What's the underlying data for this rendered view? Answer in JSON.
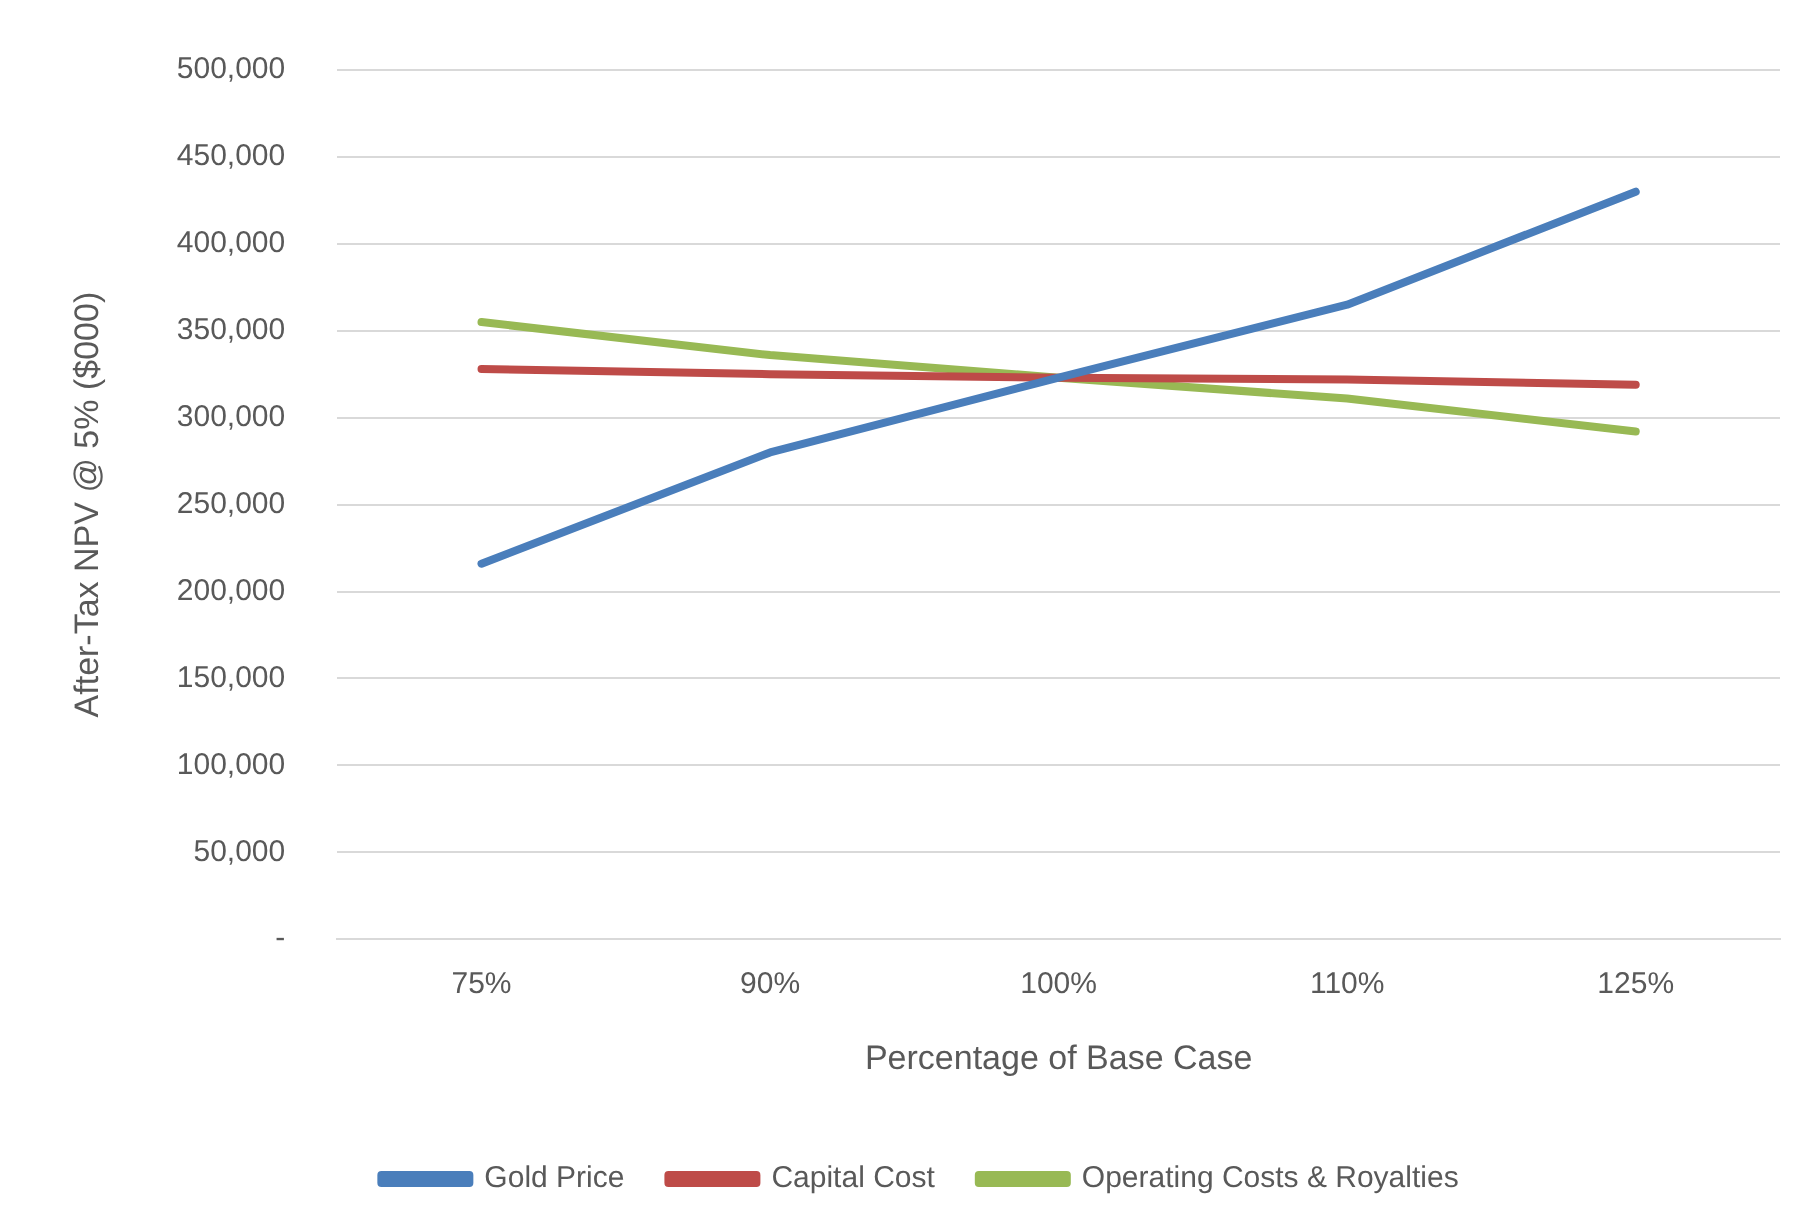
{
  "chart_data": {
    "type": "line",
    "xlabel": "Percentage of Base Case",
    "ylabel": "After-Tax NPV @ 5% ($000)",
    "categories": [
      "75%",
      "90%",
      "100%",
      "110%",
      "125%"
    ],
    "series": [
      {
        "name": "Gold Price",
        "color": "#4a7ebb",
        "values": [
          216000,
          280000,
          323000,
          365000,
          430000
        ]
      },
      {
        "name": "Capital Cost",
        "color": "#be4b48",
        "values": [
          328000,
          325000,
          323000,
          322000,
          319000
        ]
      },
      {
        "name": "Operating Costs & Royalties",
        "color": "#98b954",
        "values": [
          355000,
          336000,
          323000,
          311000,
          292000
        ]
      }
    ],
    "ylim": [
      0,
      500000
    ],
    "yticks": [
      {
        "value": 0,
        "label": "-"
      },
      {
        "value": 50000,
        "label": "50,000"
      },
      {
        "value": 100000,
        "label": "100,000"
      },
      {
        "value": 150000,
        "label": "150,000"
      },
      {
        "value": 200000,
        "label": "200,000"
      },
      {
        "value": 250000,
        "label": "250,000"
      },
      {
        "value": 300000,
        "label": "300,000"
      },
      {
        "value": 350000,
        "label": "350,000"
      },
      {
        "value": 400000,
        "label": "400,000"
      },
      {
        "value": 450000,
        "label": "450,000"
      },
      {
        "value": 500000,
        "label": "500,000"
      }
    ],
    "grid": "y",
    "legend": "bottom",
    "marker": "none",
    "line_style": "solid"
  }
}
